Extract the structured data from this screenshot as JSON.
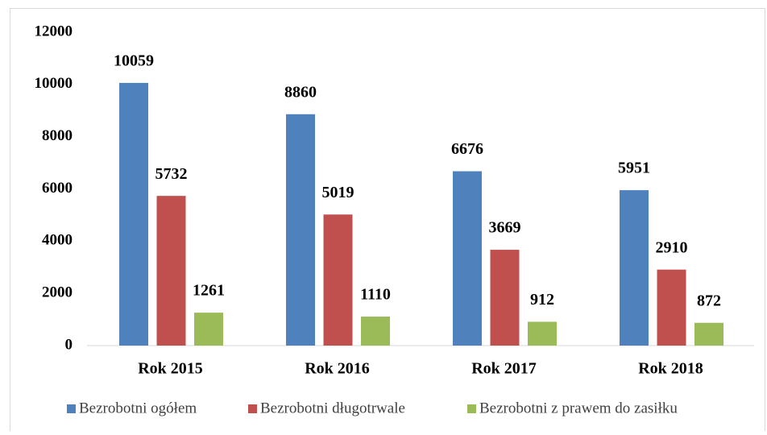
{
  "chart_data": {
    "type": "bar",
    "categories": [
      "Rok 2015",
      "Rok 2016",
      "Rok 2017",
      "Rok 2018"
    ],
    "series": [
      {
        "name": "Bezrobotni ogółem",
        "color": "#4f81bd",
        "values": [
          10059,
          8860,
          6676,
          5951
        ]
      },
      {
        "name": "Bezrobotni długotrwale",
        "color": "#c0504d",
        "values": [
          5732,
          5019,
          3669,
          2910
        ]
      },
      {
        "name": "Bezrobotni z prawem do zasiłku",
        "color": "#9bbb59",
        "values": [
          1261,
          1110,
          912,
          872
        ]
      }
    ],
    "ylim": [
      0,
      12000
    ],
    "yticks": [
      0,
      2000,
      4000,
      6000,
      8000,
      10000,
      12000
    ],
    "grid": false,
    "legend": "bottom"
  }
}
